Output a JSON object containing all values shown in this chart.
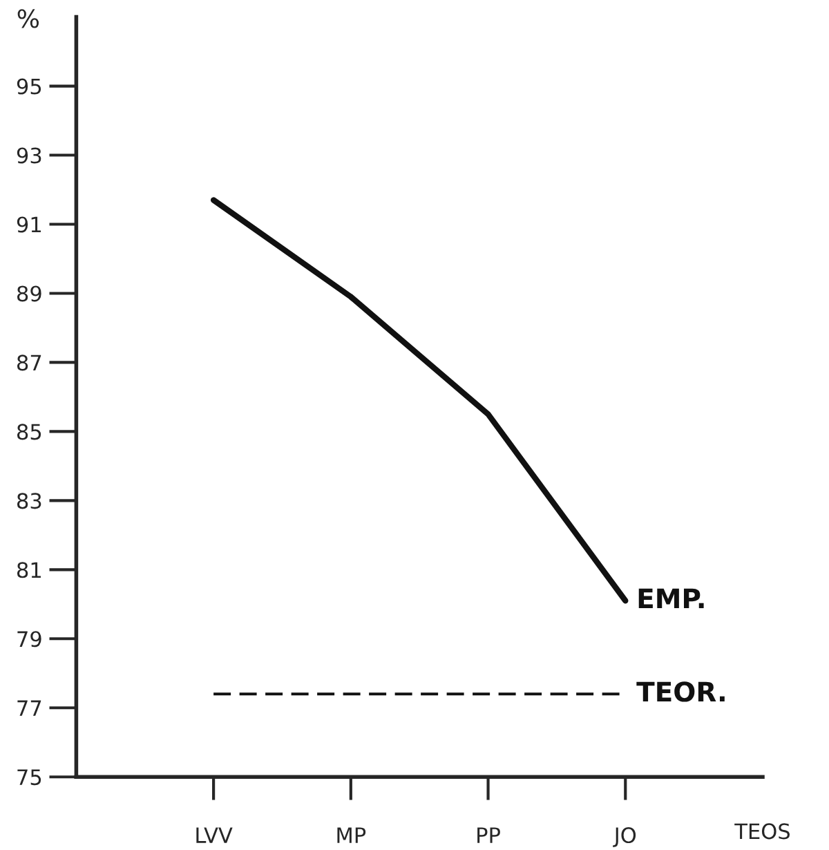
{
  "chart_data": {
    "type": "line",
    "xlabel": "TEOS",
    "ylabel": "%",
    "categories": [
      "LVV",
      "MP",
      "PP",
      "JO"
    ],
    "series": [
      {
        "name": "EMP.",
        "color": "#111111",
        "values": [
          91.7,
          88.9,
          85.5,
          80.1
        ],
        "line_style": "solid"
      },
      {
        "name": "TEOR.",
        "color": "#111111",
        "values": [
          77.4,
          77.4,
          77.4,
          77.4
        ],
        "line_style": "dashed"
      }
    ],
    "ylim": [
      75,
      97
    ],
    "yticks": [
      75,
      77,
      79,
      81,
      83,
      85,
      87,
      89,
      91,
      93,
      95
    ],
    "grid": false,
    "legend": false,
    "marker": "none"
  }
}
